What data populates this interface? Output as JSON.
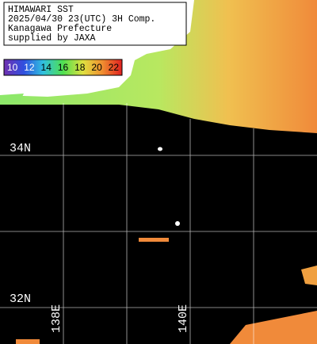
{
  "header": {
    "lines": [
      "HIMAWARI SST",
      "2025/04/30 23(UTC) 3H Comp.",
      "Kanagawa Prefecture",
      "supplied by JAXA"
    ]
  },
  "colorbar": {
    "labels": [
      "10",
      "12",
      "14",
      "16",
      "18",
      "20",
      "22"
    ]
  },
  "grid_labels": {
    "lat": [
      "34N",
      "32N"
    ],
    "lon": [
      "138E",
      "140E"
    ]
  }
}
